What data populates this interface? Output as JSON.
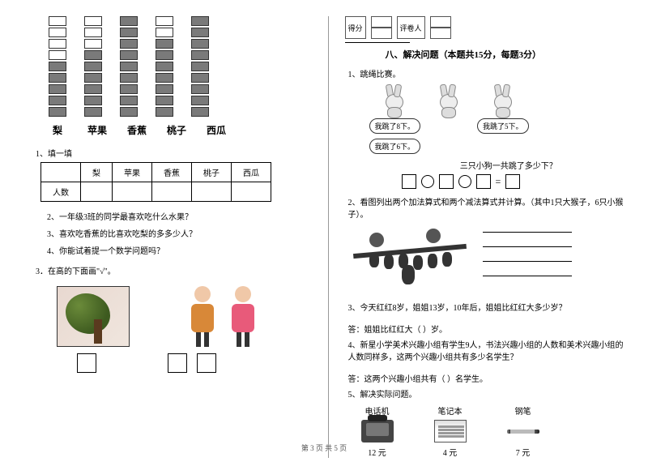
{
  "left": {
    "chart": {
      "categories": [
        "梨",
        "苹果",
        "香蕉",
        "桃子",
        "西瓜"
      ],
      "filled": [
        5,
        6,
        9,
        7,
        9
      ],
      "total_rows": 9,
      "filled_color": "#7a7a7a",
      "empty_color": "#ffffff",
      "border_color": "#333333"
    },
    "q1_label": "1、填一填",
    "table_header_blank": "",
    "table_row_label": "人数",
    "q2": "2、一年级3班的同学最喜欢吃什么水果？",
    "q3": "3、喜欢吃香蕉的比喜欢吃梨的多多少人？",
    "q4": "4、你能试着提一个数学问题吗？",
    "q3_main": "3．在高的下面画\"√\"。"
  },
  "right": {
    "score_label": "得分",
    "reviewer_label": "评卷人",
    "section8_title": "八、解决问题（本题共15分，每题3分）",
    "q1": "1、跳绳比赛。",
    "bubble1": "我跳了8下。",
    "bubble2": "我跳了6下。",
    "bubble3": "我跳了5下。",
    "jump_q": "三只小狗一共跳了多少下？",
    "eq_sign": "=",
    "q2": "2、看图列出两个加法算式和两个减法算式并计算。（其中1只大猴子，6只小猴子）。",
    "q3": "3、今天红红8岁，姐姐13岁，10年后，姐姐比红红大多少岁？",
    "ans3": "答：姐姐比红红大（    ）岁。",
    "q4": "4、新星小学美术兴趣小组有学生9人，书法兴趣小组的人数和美术兴趣小组的人数同样多，这两个兴趣小组共有多少名学生？",
    "ans4": "答：这两个兴趣小组共有（   ）名学生。",
    "q5": "5、解决实际问题。",
    "items": {
      "phone": {
        "label": "电话机",
        "price": "12 元"
      },
      "notebook": {
        "label": "笔记本",
        "price": "4 元"
      },
      "pen": {
        "label": "钢笔",
        "price": "7 元"
      }
    }
  },
  "footer": "第 3 页 共 5 页"
}
